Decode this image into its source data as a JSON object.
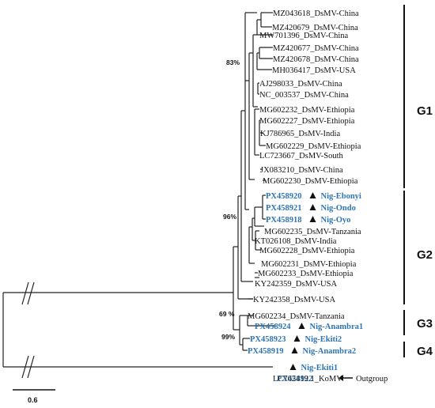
{
  "leaves": [
    {
      "id": "MZ043618_DsMV-China"
    },
    {
      "id": "MZ420679_DsMV-China"
    },
    {
      "id": "MW701396_DsMV-China"
    },
    {
      "id": "MZ420677_DsMV-China"
    },
    {
      "id": "MZ420678_DsMV-China"
    },
    {
      "id": "MH036417_DsMV-USA"
    },
    {
      "id": "AJ298033_DsMV-China"
    },
    {
      "id": "NC_003537_DsMV-China"
    },
    {
      "id": "MG602232_DsMV-Ethiopia"
    },
    {
      "id": "MG602227_DsMV-Ethiopia"
    },
    {
      "id": "KJ786965_DsMV-India"
    },
    {
      "id": "MG602229_DsMV-Ethiopia"
    },
    {
      "id": "LC723667_DsMV-South"
    },
    {
      "id": "JX083210_DsMV-China"
    },
    {
      "id": "MG602230_DsMV-Ethiopia"
    },
    {
      "id": "PX458920",
      "label": "Nig-Ebonyi",
      "highlight": true
    },
    {
      "id": "PX458921",
      "label": "Nig-Ondo",
      "highlight": true
    },
    {
      "id": "PX458918",
      "label": "Nig-Oyo",
      "highlight": true
    },
    {
      "id": "MG602235_DsMV-Tanzania"
    },
    {
      "id": "KT026108_DsMV-India"
    },
    {
      "id": "MG602228_DsMV-Ethiopia"
    },
    {
      "id": "MG602231_DsMV-Ethiopia"
    },
    {
      "id": "MG602233_DsMV-Ethiopia"
    },
    {
      "id": "KY242359_DsMV-USA"
    },
    {
      "id": "KY242358_DsMV-USA"
    },
    {
      "id": "MG602234_DsMV-Tanzania"
    },
    {
      "id": "PX458924",
      "label": "Nig-Anambra1",
      "highlight": true
    },
    {
      "id": "PX458923",
      "label": "Nig-Ekiti2",
      "highlight": true
    },
    {
      "id": "PX458919",
      "label": "Nig-Anambra2",
      "highlight": true
    },
    {
      "id": "PX458922",
      "label": "Nig-Ekiti1",
      "highlight": true
    },
    {
      "id": "LC762419.1_KoMV",
      "outgroup_label": "Outgroup"
    }
  ],
  "bootstrap": [
    "83%",
    "96%",
    "69 %",
    "99%"
  ],
  "groups": [
    "G1",
    "G2",
    "G3",
    "G4"
  ],
  "scale_bar": {
    "label": "0.6"
  },
  "colors": {
    "highlight": "#2e75b6",
    "branch": "#222222"
  }
}
